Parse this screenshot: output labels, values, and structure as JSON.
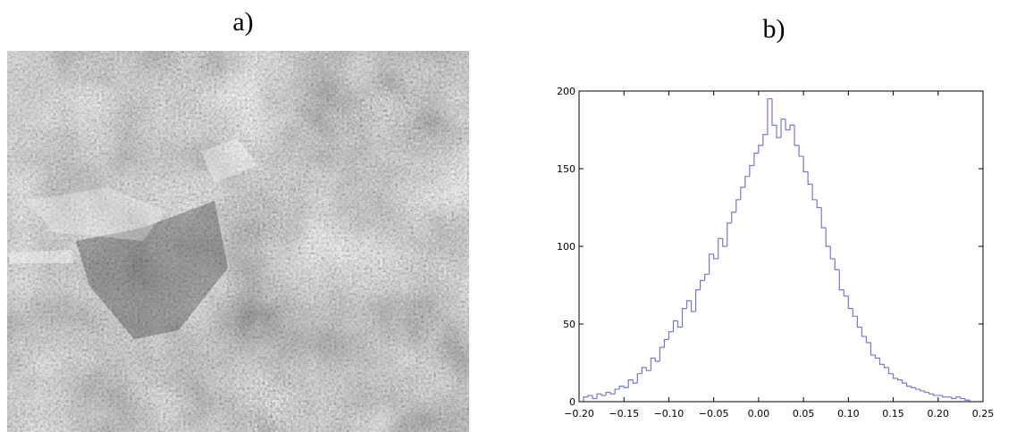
{
  "panels": {
    "a": "a)",
    "b": "b)"
  },
  "chart_data": {
    "type": "histogram",
    "color": "#7878c8",
    "bins": [
      -0.195,
      -0.19,
      -0.185,
      -0.18,
      -0.175,
      -0.17,
      -0.165,
      -0.16,
      -0.155,
      -0.15,
      -0.145,
      -0.14,
      -0.135,
      -0.13,
      -0.125,
      -0.12,
      -0.115,
      -0.11,
      -0.105,
      -0.1,
      -0.095,
      -0.09,
      -0.085,
      -0.08,
      -0.075,
      -0.07,
      -0.065,
      -0.06,
      -0.055,
      -0.05,
      -0.045,
      -0.04,
      -0.035,
      -0.03,
      -0.025,
      -0.02,
      -0.015,
      -0.01,
      -0.005,
      0,
      0.005,
      0.01,
      0.015,
      0.02,
      0.025,
      0.03,
      0.035,
      0.04,
      0.045,
      0.05,
      0.055,
      0.06,
      0.065,
      0.07,
      0.075,
      0.08,
      0.085,
      0.09,
      0.095,
      0.1,
      0.105,
      0.11,
      0.115,
      0.12,
      0.125,
      0.13,
      0.135,
      0.14,
      0.145,
      0.15,
      0.155,
      0.16,
      0.165,
      0.17,
      0.175,
      0.18,
      0.185,
      0.19,
      0.195,
      0.2,
      0.205,
      0.21,
      0.215,
      0.22,
      0.225,
      0.23,
      0.235
    ],
    "values": [
      3,
      4,
      2,
      5,
      4,
      6,
      5,
      8,
      10,
      9,
      14,
      12,
      18,
      22,
      20,
      28,
      26,
      35,
      40,
      45,
      52,
      48,
      60,
      65,
      58,
      72,
      78,
      82,
      95,
      92,
      105,
      100,
      115,
      122,
      130,
      138,
      145,
      152,
      160,
      165,
      172,
      195,
      178,
      170,
      182,
      175,
      178,
      165,
      158,
      148,
      140,
      130,
      125,
      112,
      100,
      92,
      85,
      72,
      68,
      60,
      55,
      48,
      42,
      38,
      30,
      28,
      24,
      22,
      18,
      15,
      14,
      12,
      10,
      9,
      8,
      7,
      6,
      5,
      4,
      4,
      3,
      3,
      2,
      3,
      2,
      1
    ],
    "xlim": [
      -0.2,
      0.25
    ],
    "xticks": [
      {
        "value": -0.2,
        "label": "−0.20"
      },
      {
        "value": -0.15,
        "label": "−0.15"
      },
      {
        "value": -0.1,
        "label": "−0.10"
      },
      {
        "value": -0.05,
        "label": "−0.05"
      },
      {
        "value": 0,
        "label": "0.00"
      },
      {
        "value": 0.05,
        "label": "0.05"
      },
      {
        "value": 0.1,
        "label": "0.10"
      },
      {
        "value": 0.15,
        "label": "0.15"
      },
      {
        "value": 0.2,
        "label": "0.20"
      },
      {
        "value": 0.25,
        "label": "0.25"
      }
    ],
    "ylim": [
      0,
      200
    ],
    "yticks": [
      0,
      50,
      100,
      150,
      200
    ]
  }
}
